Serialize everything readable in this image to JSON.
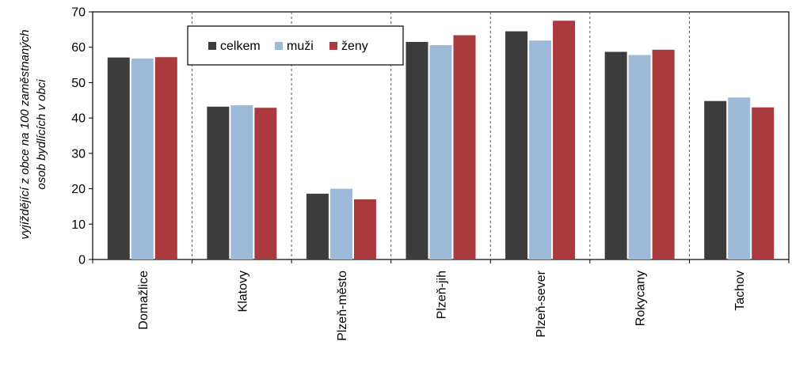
{
  "chart_data": {
    "type": "bar",
    "ylabel_lines": [
      "vyjíždějící z obce na 100 zaměstnaných",
      "osob bydlících v obci"
    ],
    "ylim": [
      0,
      70
    ],
    "yticks": [
      "0",
      "10",
      "20",
      "30",
      "40",
      "50",
      "60",
      "70"
    ],
    "ytick_values": [
      0,
      10,
      20,
      30,
      40,
      50,
      60,
      70
    ],
    "categories": [
      "Domažlice",
      "Klatovy",
      "Plzeň-město",
      "Plzeň-jih",
      "Plzeň-sever",
      "Rokycany",
      "Tachov"
    ],
    "series": [
      {
        "name": "celkem",
        "color": "#3c3c3c",
        "values": [
          57.1,
          43.2,
          18.6,
          61.5,
          64.5,
          58.7,
          44.8
        ]
      },
      {
        "name": "muži",
        "color": "#9dbad9",
        "values": [
          56.8,
          43.6,
          20.0,
          60.6,
          61.9,
          57.8,
          45.8
        ]
      },
      {
        "name": "ženy",
        "color": "#aa3a3d",
        "values": [
          57.2,
          42.9,
          17.0,
          63.4,
          67.5,
          59.3,
          43.0
        ]
      }
    ],
    "grid": "vertical dashed separators between categories",
    "legend_position": "top-left inside plot"
  }
}
